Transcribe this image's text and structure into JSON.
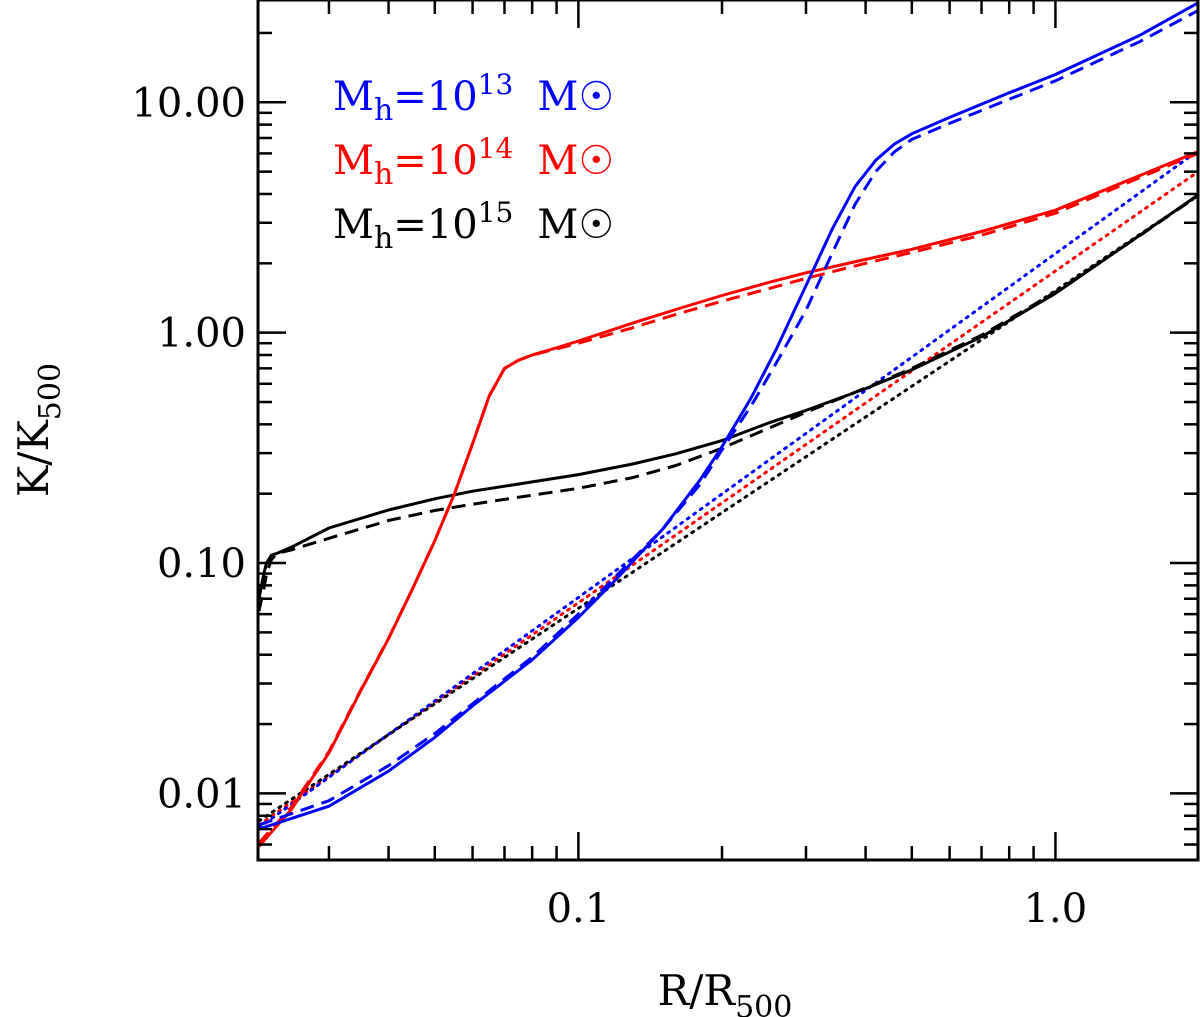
{
  "chart_data": {
    "type": "line",
    "xlabel": {
      "base": "R/R",
      "sub": "500"
    },
    "ylabel": {
      "base": "K/K",
      "sub": "500"
    },
    "x_scale": "log",
    "y_scale": "log",
    "xlim": [
      0.0213,
      1.99
    ],
    "ylim": [
      0.00514,
      27.8
    ],
    "x_ticks": [
      0.1,
      1.0
    ],
    "x_tick_labels": [
      "0.1",
      "1.0"
    ],
    "y_ticks": [
      0.01,
      0.1,
      1.0,
      10.0
    ],
    "y_tick_labels": [
      "0.01",
      "0.10",
      "1.00",
      "10.00"
    ],
    "legend": {
      "placement": "top-left",
      "entries": [
        {
          "prefix": "M",
          "sub": "h",
          "eq": "=10",
          "exp": "13",
          "unit": "M",
          "sym": "☉",
          "color": "#0000ff"
        },
        {
          "prefix": "M",
          "sub": "h",
          "eq": "=10",
          "exp": "14",
          "unit": "M",
          "sym": "☉",
          "color": "#ff0000"
        },
        {
          "prefix": "M",
          "sub": "h",
          "eq": "=10",
          "exp": "15",
          "unit": "M",
          "sym": "☉",
          "color": "#000000"
        }
      ]
    },
    "series": [
      {
        "color": "#ff0000",
        "style": "dotted",
        "x": [
          0.0214,
          1.99
        ],
        "y": [
          0.0073,
          4.99
        ]
      },
      {
        "color": "#0000ff",
        "style": "dotted",
        "x": [
          0.0214,
          1.99
        ],
        "y": [
          0.0071,
          6.16
        ]
      },
      {
        "color": "#000000",
        "style": "dotted",
        "x": [
          0.0214,
          1.99
        ],
        "y": [
          0.0076,
          3.93
        ]
      },
      {
        "color": "#000000",
        "style": "dashed",
        "x": [
          0.0214,
          0.0219,
          0.0222,
          0.0227,
          0.0233,
          0.025,
          0.03,
          0.04,
          0.05,
          0.06,
          0.08,
          0.1,
          0.13,
          0.16,
          0.2,
          0.25,
          0.3,
          0.4,
          0.5,
          0.7,
          1.0,
          1.5,
          1.99
        ],
        "y": [
          0.062,
          0.077,
          0.09,
          0.103,
          0.11,
          0.114,
          0.128,
          0.153,
          0.169,
          0.18,
          0.197,
          0.211,
          0.235,
          0.265,
          0.315,
          0.384,
          0.451,
          0.575,
          0.7,
          0.975,
          1.5,
          2.63,
          3.93
        ]
      },
      {
        "color": "#000000",
        "style": "solid",
        "x": [
          0.0214,
          0.0219,
          0.0222,
          0.0227,
          0.0233,
          0.025,
          0.03,
          0.04,
          0.05,
          0.06,
          0.08,
          0.1,
          0.13,
          0.16,
          0.2,
          0.25,
          0.3,
          0.4,
          0.5,
          0.7,
          1.0,
          1.5,
          1.99
        ],
        "y": [
          0.07,
          0.09,
          0.1,
          0.108,
          0.11,
          0.117,
          0.142,
          0.17,
          0.19,
          0.205,
          0.225,
          0.242,
          0.269,
          0.298,
          0.34,
          0.405,
          0.46,
          0.572,
          0.69,
          0.96,
          1.48,
          2.64,
          3.96
        ]
      },
      {
        "color": "#ff0000",
        "style": "solid",
        "x": [
          0.0214,
          0.025,
          0.03,
          0.035,
          0.04,
          0.045,
          0.05,
          0.055,
          0.06,
          0.065,
          0.07,
          0.075,
          0.08,
          0.09,
          0.1,
          0.13,
          0.16,
          0.2,
          0.25,
          0.3,
          0.4,
          0.5,
          0.7,
          1.0,
          1.5,
          1.99
        ],
        "y": [
          0.0059,
          0.0085,
          0.015,
          0.028,
          0.047,
          0.078,
          0.125,
          0.2,
          0.33,
          0.53,
          0.7,
          0.76,
          0.8,
          0.86,
          0.92,
          1.1,
          1.26,
          1.45,
          1.65,
          1.82,
          2.08,
          2.3,
          2.75,
          3.4,
          4.8,
          6.1
        ]
      },
      {
        "color": "#ff0000",
        "style": "dashed",
        "x": [
          0.0214,
          0.025,
          0.03,
          0.035,
          0.04,
          0.045,
          0.05,
          0.055,
          0.06,
          0.065,
          0.07,
          0.075,
          0.08,
          0.09,
          0.1,
          0.13,
          0.16,
          0.2,
          0.25,
          0.3,
          0.4,
          0.5,
          0.7,
          1.0,
          1.5,
          1.99
        ],
        "y": [
          0.0061,
          0.0087,
          0.0152,
          0.0282,
          0.0472,
          0.0782,
          0.1252,
          0.2002,
          0.33,
          0.53,
          0.7,
          0.76,
          0.8,
          0.85,
          0.9,
          1.05,
          1.2,
          1.37,
          1.55,
          1.72,
          2.0,
          2.23,
          2.65,
          3.3,
          4.7,
          6.0
        ]
      },
      {
        "color": "#0000ff",
        "style": "solid",
        "x": [
          0.0214,
          0.03,
          0.04,
          0.05,
          0.06,
          0.08,
          0.1,
          0.12,
          0.15,
          0.18,
          0.2,
          0.23,
          0.26,
          0.3,
          0.34,
          0.38,
          0.42,
          0.46,
          0.5,
          0.6,
          0.8,
          1.0,
          1.5,
          1.99
        ],
        "y": [
          0.007,
          0.0088,
          0.0125,
          0.0175,
          0.024,
          0.038,
          0.058,
          0.085,
          0.14,
          0.23,
          0.32,
          0.52,
          0.85,
          1.6,
          2.8,
          4.3,
          5.6,
          6.6,
          7.3,
          8.6,
          11.0,
          13.2,
          19.5,
          27.0
        ]
      },
      {
        "color": "#0000ff",
        "style": "dashed",
        "x": [
          0.0214,
          0.03,
          0.04,
          0.05,
          0.06,
          0.08,
          0.1,
          0.12,
          0.15,
          0.18,
          0.2,
          0.23,
          0.26,
          0.3,
          0.34,
          0.38,
          0.42,
          0.46,
          0.5,
          0.6,
          0.8,
          1.0,
          1.5,
          1.99
        ],
        "y": [
          0.0073,
          0.0093,
          0.0132,
          0.0182,
          0.0245,
          0.039,
          0.06,
          0.088,
          0.14,
          0.22,
          0.31,
          0.48,
          0.74,
          1.25,
          2.2,
          3.6,
          5.0,
          6.1,
          6.9,
          8.1,
          10.3,
          12.4,
          18.3,
          25.0
        ]
      }
    ]
  }
}
